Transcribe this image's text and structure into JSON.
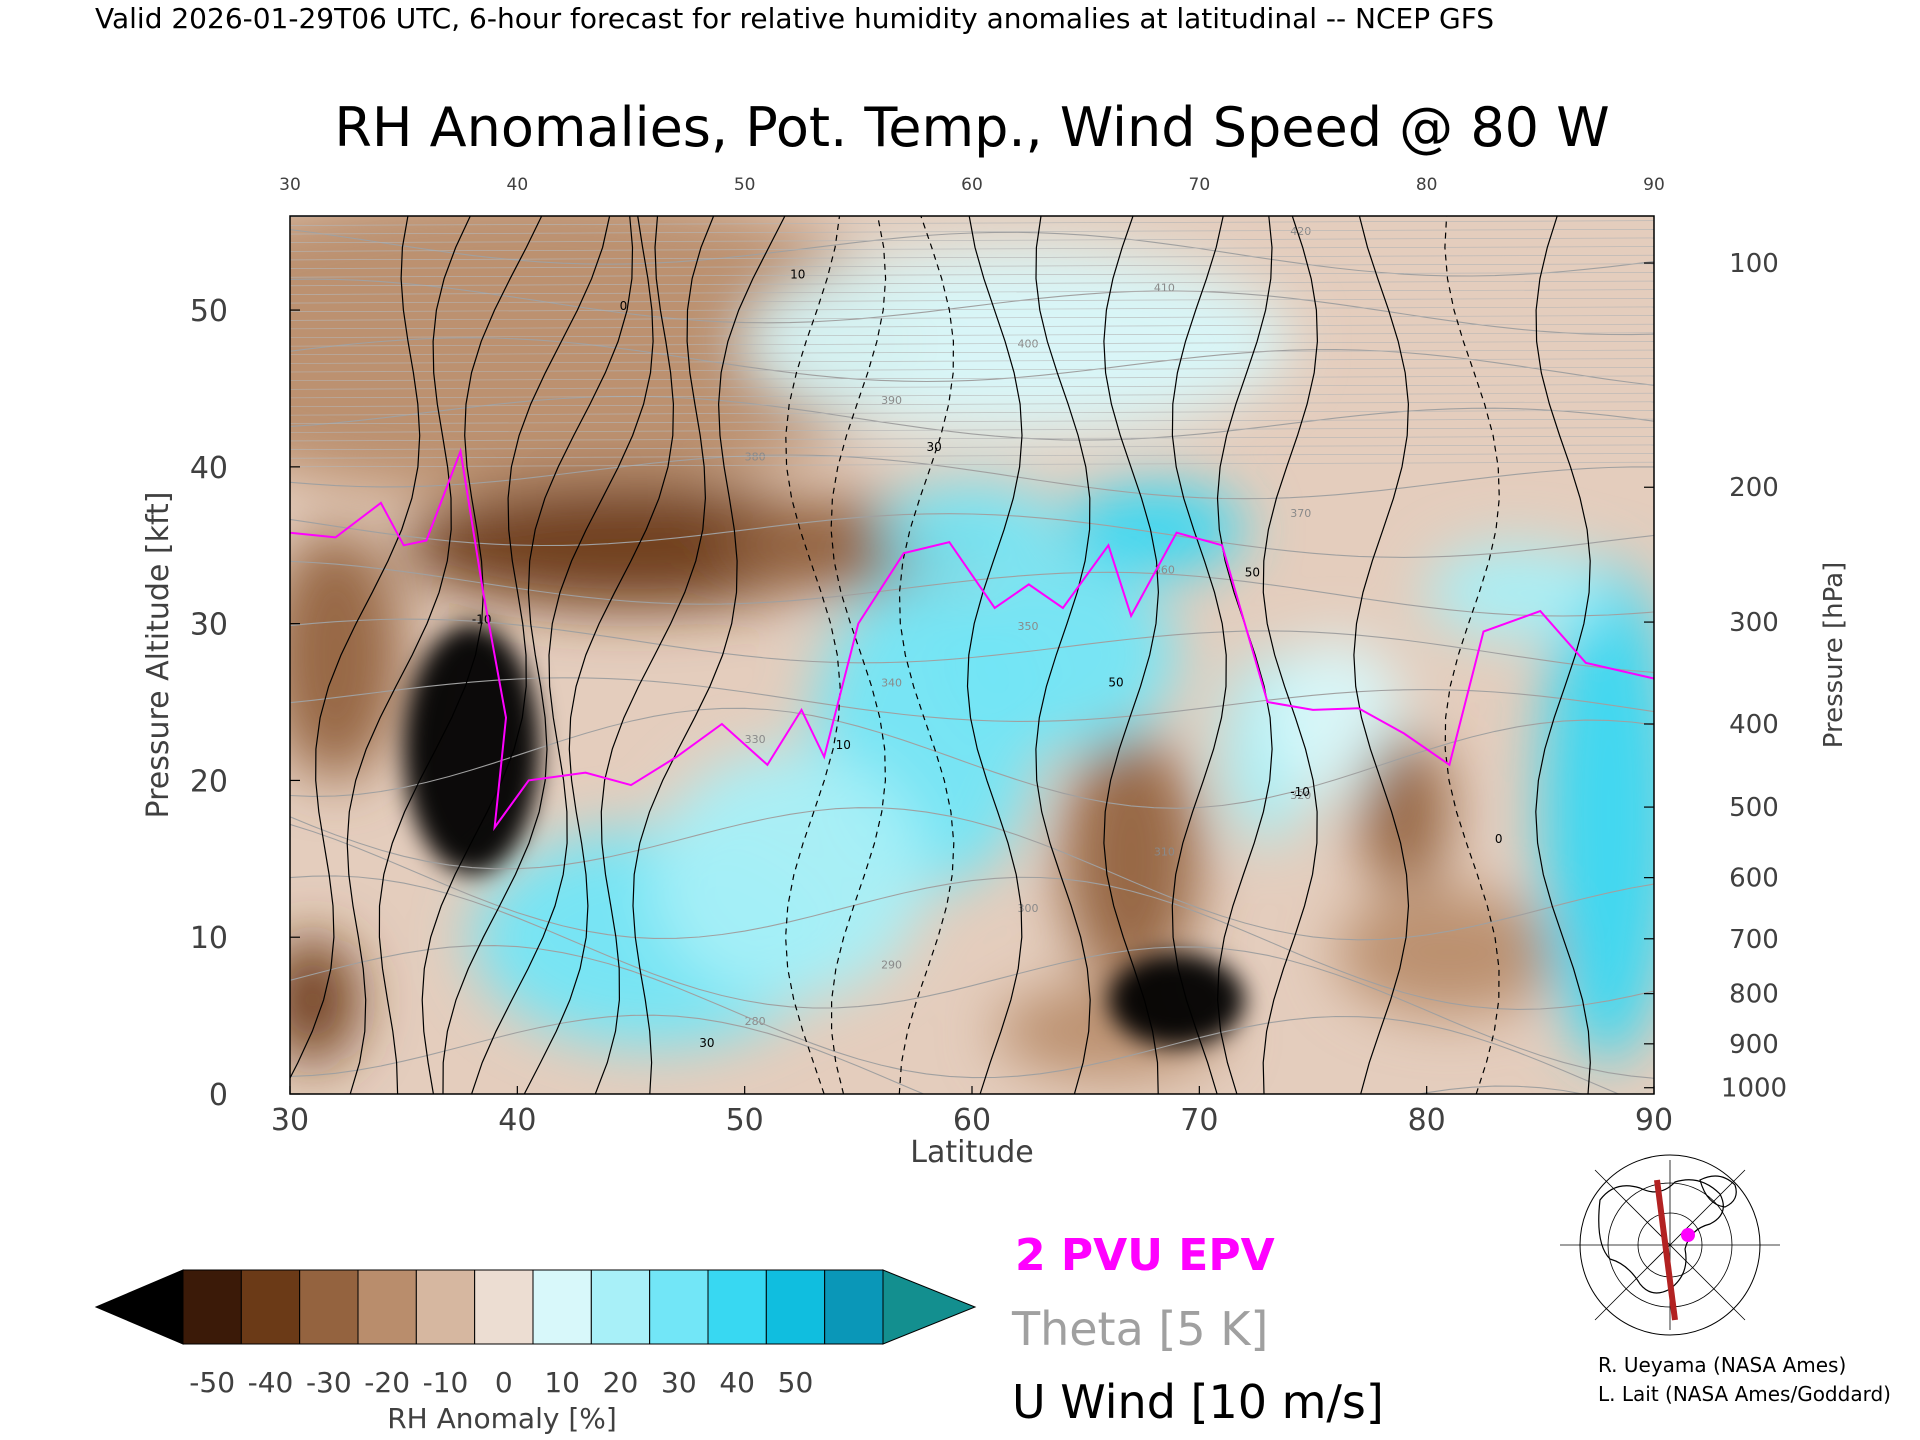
{
  "header": {
    "valid_line": "Valid 2026-01-29T06 UTC, 6-hour forecast for relative humidity anomalies at latitudinal -- NCEP GFS",
    "title": "RH Anomalies, Pot. Temp., Wind Speed @ 80 W"
  },
  "legend": {
    "epv_label": "2 PVU EPV",
    "theta_label": "Theta [5 K]",
    "wind_label": "U Wind [10 m/s]",
    "epv_color": "#ff00ff",
    "theta_color": "#a0a0a0",
    "wind_color": "#000000"
  },
  "colorbar": {
    "label": "RH Anomaly [%]",
    "ticks": [
      "-50",
      "-40",
      "-30",
      "-20",
      "-10",
      "0",
      "10",
      "20",
      "30",
      "40",
      "50"
    ],
    "colors": [
      "#000000",
      "#3b1a08",
      "#6b3a17",
      "#94633f",
      "#b98d6c",
      "#d6b7a0",
      "#ecddd2",
      "#d8f8fa",
      "#a8f0f8",
      "#72e6f7",
      "#38d8f2",
      "#10bedf",
      "#0a97b8",
      "#138f8f"
    ]
  },
  "credits": {
    "line1": "R. Ueyama (NASA Ames)",
    "line2": "L. Lait (NASA Ames/Goddard)"
  },
  "chart_data": {
    "type": "heatmap",
    "title": "RH Anomalies, Pot. Temp., Wind Speed @ 80 W",
    "xlabel": "Latitude",
    "ylabel": "Pressure Altitude [kft]",
    "ylabel_right": "Pressure [hPa]",
    "xlim": [
      30,
      90
    ],
    "ylim": [
      0,
      56
    ],
    "x_ticks": [
      "30",
      "40",
      "50",
      "60",
      "70",
      "80",
      "90"
    ],
    "y_ticks": [
      "0",
      "10",
      "20",
      "30",
      "40",
      "50"
    ],
    "pressure_ticks": [
      {
        "hpa": "100",
        "kft": 53.0
      },
      {
        "hpa": "200",
        "kft": 38.7
      },
      {
        "hpa": "300",
        "kft": 30.1
      },
      {
        "hpa": "400",
        "kft": 23.6
      },
      {
        "hpa": "500",
        "kft": 18.3
      },
      {
        "hpa": "600",
        "kft": 13.8
      },
      {
        "hpa": "700",
        "kft": 9.9
      },
      {
        "hpa": "800",
        "kft": 6.4
      },
      {
        "hpa": "900",
        "kft": 3.2
      },
      {
        "hpa": "1000",
        "kft": 0.4
      }
    ],
    "rh_blobs": [
      {
        "lat": 40,
        "kft": 48,
        "rx": 18,
        "ry": 10,
        "anom": -12
      },
      {
        "lat": 45,
        "kft": 35,
        "rx": 10,
        "ry": 4,
        "anom": -32
      },
      {
        "lat": 55,
        "kft": 35,
        "rx": 6,
        "ry": 3,
        "anom": -28
      },
      {
        "lat": 38,
        "kft": 22,
        "rx": 3,
        "ry": 8,
        "anom": -60
      },
      {
        "lat": 32,
        "kft": 28,
        "rx": 3,
        "ry": 8,
        "anom": -30
      },
      {
        "lat": 31,
        "kft": 6,
        "rx": 2,
        "ry": 4,
        "anom": -40
      },
      {
        "lat": 46,
        "kft": 10,
        "rx": 8,
        "ry": 7,
        "anom": 30
      },
      {
        "lat": 58,
        "kft": 23,
        "rx": 5,
        "ry": 10,
        "anom": 35
      },
      {
        "lat": 64,
        "kft": 28,
        "rx": 5,
        "ry": 6,
        "anom": 30
      },
      {
        "lat": 68,
        "kft": 36,
        "rx": 4,
        "ry": 3,
        "anom": 42
      },
      {
        "lat": 60,
        "kft": 36,
        "rx": 4,
        "ry": 3,
        "anom": 35
      },
      {
        "lat": 69,
        "kft": 6,
        "rx": 3,
        "ry": 3,
        "anom": -60
      },
      {
        "lat": 67,
        "kft": 15,
        "rx": 3,
        "ry": 8,
        "anom": -22
      },
      {
        "lat": 73,
        "kft": 22,
        "rx": 2,
        "ry": 6,
        "anom": 25
      },
      {
        "lat": 76,
        "kft": 24,
        "rx": 3,
        "ry": 5,
        "anom": 18
      },
      {
        "lat": 79,
        "kft": 18,
        "rx": 2,
        "ry": 5,
        "anom": -28
      },
      {
        "lat": 81,
        "kft": 9,
        "rx": 5,
        "ry": 4,
        "anom": -15
      },
      {
        "lat": 88,
        "kft": 18,
        "rx": 3,
        "ry": 16,
        "anom": 48
      },
      {
        "lat": 84,
        "kft": 32,
        "rx": 4,
        "ry": 3,
        "anom": 28
      },
      {
        "lat": 62,
        "kft": 48,
        "rx": 12,
        "ry": 6,
        "anom": 10
      },
      {
        "lat": 52,
        "kft": 14,
        "rx": 6,
        "ry": 8,
        "anom": 22
      },
      {
        "lat": 66,
        "kft": 4,
        "rx": 5,
        "ry": 3,
        "anom": -18
      }
    ],
    "epv_2pvu": [
      [
        30,
        35.8
      ],
      [
        32,
        35.5
      ],
      [
        34,
        37.7
      ],
      [
        35,
        35.0
      ],
      [
        36,
        35.3
      ],
      [
        37.5,
        41.0
      ],
      [
        38.5,
        32.0
      ],
      [
        39.5,
        24.0
      ],
      [
        39,
        17.0
      ],
      [
        40.5,
        20.0
      ],
      [
        43,
        20.5
      ],
      [
        45,
        19.7
      ],
      [
        47,
        21.5
      ],
      [
        49,
        23.6
      ],
      [
        51,
        21.0
      ],
      [
        52.5,
        24.5
      ],
      [
        53.5,
        21.5
      ],
      [
        55,
        30.0
      ],
      [
        57,
        34.5
      ],
      [
        59,
        35.2
      ],
      [
        61,
        31.0
      ],
      [
        62.5,
        32.5
      ],
      [
        64,
        31.0
      ],
      [
        66,
        35.0
      ],
      [
        67,
        30.5
      ],
      [
        69,
        35.8
      ],
      [
        71,
        35.0
      ],
      [
        73,
        25.0
      ],
      [
        75,
        24.5
      ],
      [
        77,
        24.6
      ],
      [
        79,
        23.0
      ],
      [
        81,
        21.0
      ],
      [
        82.5,
        29.5
      ],
      [
        85,
        30.8
      ],
      [
        87,
        27.5
      ],
      [
        90,
        26.5
      ]
    ],
    "theta_levels": [
      280,
      290,
      300,
      310,
      320,
      330,
      340,
      350,
      360,
      370,
      380,
      390,
      400,
      410,
      420
    ],
    "theta_labels_shown": [
      "280",
      "290",
      "300",
      "310",
      "320",
      "330",
      "340",
      "350",
      "360",
      "370",
      "380",
      "390",
      "400",
      "410",
      "420"
    ],
    "u_wind_labels_shown": [
      "-10",
      "0",
      "10",
      "30",
      "50"
    ]
  }
}
